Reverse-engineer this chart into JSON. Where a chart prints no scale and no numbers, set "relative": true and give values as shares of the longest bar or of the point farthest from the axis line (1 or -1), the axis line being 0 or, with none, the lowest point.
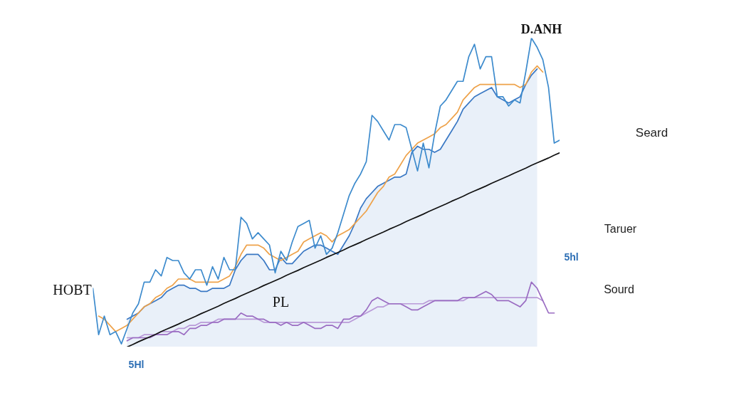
{
  "chart_data": {
    "type": "line",
    "relative": true,
    "categories": [
      null,
      null,
      null,
      null,
      null,
      null,
      null,
      null,
      null,
      null,
      null,
      null,
      null,
      null,
      null,
      null,
      null,
      null,
      null,
      null,
      null,
      null,
      null,
      null,
      null,
      null,
      null,
      null,
      null,
      null,
      null,
      null,
      null,
      null,
      null,
      null,
      null,
      null,
      null,
      null,
      null,
      null,
      null,
      null,
      null,
      null,
      null,
      null,
      null,
      null,
      null,
      null,
      null,
      null,
      null,
      null,
      null,
      null,
      null,
      null,
      null,
      null,
      null,
      null,
      null,
      null,
      null,
      null,
      null,
      null,
      null,
      null,
      null,
      null,
      null,
      null,
      null,
      null,
      null,
      null,
      null,
      null,
      null
    ],
    "series": [
      {
        "type": "area",
        "color": "#3a78c4",
        "values": [
          null,
          null,
          null,
          null,
          null,
          null,
          0.09,
          0.1,
          0.11,
          0.13,
          0.14,
          0.15,
          0.16,
          0.18,
          0.19,
          0.2,
          0.2,
          0.19,
          0.19,
          0.18,
          0.18,
          0.19,
          0.19,
          0.19,
          0.2,
          0.25,
          0.28,
          0.3,
          0.3,
          0.3,
          0.28,
          0.25,
          0.25,
          0.29,
          0.27,
          0.27,
          0.29,
          0.31,
          0.32,
          0.33,
          0.33,
          0.32,
          0.31,
          0.3,
          0.33,
          0.36,
          0.4,
          0.45,
          0.48,
          0.5,
          0.52,
          0.53,
          0.54,
          0.55,
          0.55,
          0.56,
          0.63,
          0.65,
          0.64,
          0.64,
          0.63,
          0.64,
          0.67,
          0.7,
          0.73,
          0.77,
          0.79,
          0.81,
          0.82,
          0.83,
          0.84,
          0.81,
          0.8,
          0.79,
          0.8,
          0.81,
          0.85,
          0.88,
          0.9,
          null,
          null,
          null,
          null
        ]
      },
      {
        "color": "#b99ad8",
        "values": [
          null,
          null,
          null,
          null,
          null,
          null,
          0.03,
          0.03,
          0.03,
          0.04,
          0.04,
          0.04,
          0.05,
          0.05,
          0.05,
          0.06,
          0.06,
          0.07,
          0.07,
          0.08,
          0.08,
          0.08,
          0.09,
          0.09,
          0.09,
          0.09,
          0.09,
          0.09,
          0.09,
          0.09,
          0.08,
          0.08,
          0.08,
          0.08,
          0.08,
          0.08,
          0.08,
          0.08,
          0.08,
          0.08,
          0.08,
          0.08,
          0.08,
          0.08,
          0.08,
          0.08,
          0.09,
          0.1,
          0.11,
          0.12,
          0.13,
          0.13,
          0.14,
          0.14,
          0.14,
          0.14,
          0.14,
          0.14,
          0.14,
          0.15,
          0.15,
          0.15,
          0.15,
          0.15,
          0.15,
          0.15,
          0.16,
          0.16,
          0.16,
          0.16,
          0.16,
          0.16,
          0.16,
          0.16,
          0.16,
          0.16,
          0.16,
          0.16,
          0.16,
          0.15,
          null,
          null,
          null
        ]
      },
      {
        "color": "#9a6cc2",
        "values": [
          null,
          null,
          null,
          null,
          null,
          null,
          0.02,
          0.03,
          0.03,
          0.03,
          0.03,
          0.04,
          0.04,
          0.04,
          0.05,
          0.05,
          0.04,
          0.06,
          0.06,
          0.07,
          0.07,
          0.08,
          0.08,
          0.09,
          0.09,
          0.09,
          0.11,
          0.1,
          0.1,
          0.09,
          0.09,
          0.08,
          0.08,
          0.07,
          0.08,
          0.07,
          0.07,
          0.08,
          0.07,
          0.06,
          0.06,
          0.07,
          0.07,
          0.06,
          0.09,
          0.09,
          0.1,
          0.1,
          0.12,
          0.15,
          0.16,
          0.15,
          0.14,
          0.14,
          0.14,
          0.13,
          0.12,
          0.12,
          0.13,
          0.14,
          0.15,
          0.15,
          0.15,
          0.15,
          0.15,
          0.16,
          0.16,
          0.16,
          0.17,
          0.18,
          0.17,
          0.15,
          0.15,
          0.15,
          0.14,
          0.13,
          0.15,
          0.21,
          0.19,
          0.15,
          0.11,
          0.11,
          null
        ]
      },
      {
        "color": "#eea24a",
        "values": [
          null,
          0.1,
          0.09,
          0.07,
          0.05,
          0.06,
          0.07,
          0.09,
          0.11,
          0.13,
          0.14,
          0.16,
          0.17,
          0.19,
          0.2,
          0.22,
          0.22,
          0.22,
          0.21,
          0.21,
          0.21,
          0.21,
          0.21,
          0.22,
          0.23,
          0.26,
          0.3,
          0.33,
          0.33,
          0.33,
          0.32,
          0.3,
          0.29,
          0.28,
          0.29,
          0.3,
          0.31,
          0.34,
          0.35,
          0.36,
          0.37,
          0.36,
          0.34,
          0.36,
          0.37,
          0.38,
          0.4,
          0.42,
          0.44,
          0.47,
          0.5,
          0.52,
          0.55,
          0.56,
          0.59,
          0.62,
          0.64,
          0.66,
          0.67,
          0.68,
          0.69,
          0.71,
          0.72,
          0.74,
          0.76,
          0.8,
          0.82,
          0.84,
          0.85,
          0.85,
          0.85,
          0.85,
          0.85,
          0.85,
          0.85,
          0.84,
          0.85,
          0.89,
          0.91,
          0.89,
          null,
          null,
          null
        ]
      },
      {
        "color": "#3d8bcd",
        "values": [
          0.19,
          0.04,
          0.1,
          0.04,
          0.05,
          0.01,
          0.06,
          0.11,
          0.14,
          0.21,
          0.21,
          0.25,
          0.23,
          0.29,
          0.28,
          0.28,
          0.24,
          0.22,
          0.25,
          0.25,
          0.2,
          0.26,
          0.22,
          0.29,
          0.25,
          0.25,
          0.42,
          0.4,
          0.35,
          0.37,
          0.35,
          0.33,
          0.24,
          0.31,
          0.28,
          0.34,
          0.39,
          0.4,
          0.41,
          0.32,
          0.36,
          0.3,
          0.32,
          0.37,
          0.43,
          0.49,
          0.53,
          0.56,
          0.6,
          0.75,
          0.73,
          0.7,
          0.67,
          0.72,
          0.72,
          0.71,
          0.64,
          0.57,
          0.66,
          0.58,
          0.69,
          0.78,
          0.8,
          0.83,
          0.86,
          0.86,
          0.94,
          0.98,
          0.9,
          0.94,
          0.94,
          0.81,
          0.81,
          0.78,
          0.8,
          0.79,
          0.89,
          1,
          0.97,
          0.93,
          0.84,
          0.66,
          0.67
        ]
      },
      {
        "color": "#111111",
        "values": [
          null,
          null,
          null,
          null,
          null,
          null,
          0,
          0.008,
          0.017,
          0.025,
          0.033,
          0.041,
          0.05,
          0.058,
          0.066,
          0.074,
          0.083,
          0.091,
          0.099,
          0.108,
          0.116,
          0.124,
          0.132,
          0.141,
          0.149,
          0.157,
          0.166,
          0.174,
          0.182,
          0.19,
          0.199,
          0.207,
          0.215,
          0.223,
          0.232,
          0.24,
          0.248,
          0.257,
          0.265,
          0.273,
          0.281,
          0.29,
          0.298,
          0.306,
          0.314,
          0.323,
          0.331,
          0.339,
          0.348,
          0.356,
          0.364,
          0.372,
          0.381,
          0.389,
          0.397,
          0.406,
          0.414,
          0.422,
          0.43,
          0.439,
          0.447,
          0.455,
          0.463,
          0.472,
          0.48,
          0.488,
          0.497,
          0.505,
          0.513,
          0.521,
          0.53,
          0.538,
          0.546,
          0.554,
          0.563,
          0.571,
          0.579,
          0.588,
          0.596,
          0.604,
          0.612,
          0.621,
          0.629
        ]
      }
    ],
    "annotations": [
      "D.ANH",
      "Seard",
      "Taruer",
      "5hl",
      "Sourd",
      "HOBT",
      "PL",
      "5Hl"
    ]
  }
}
